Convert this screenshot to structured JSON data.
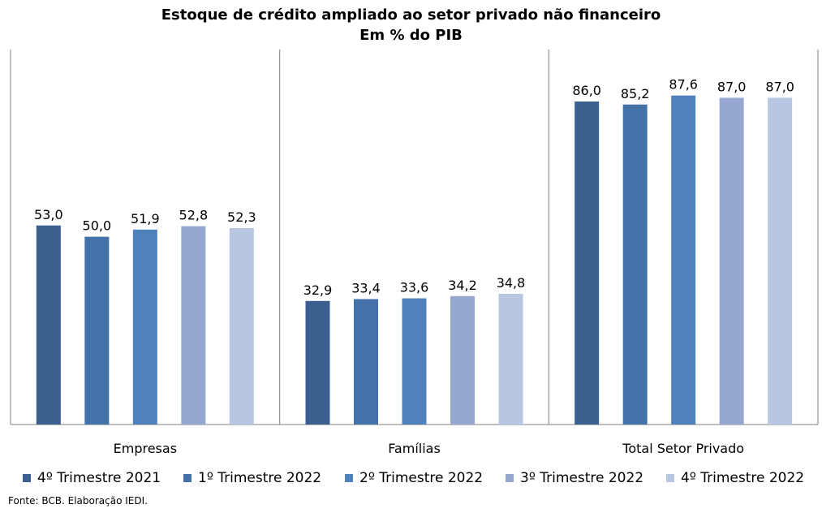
{
  "chart_data": {
    "type": "bar",
    "title": "Estoque de crédito ampliado ao setor privado não financeiro",
    "subtitle": "Em % do PIB",
    "categories": [
      "Empresas",
      "Famílias",
      "Total Setor Privado"
    ],
    "series": [
      {
        "name": "4º Trimestre 2021",
        "color": "#3b5f8f",
        "values": [
          53.0,
          32.9,
          86.0
        ],
        "labels": [
          "53,0",
          "32,9",
          "86,0"
        ]
      },
      {
        "name": "1º Trimestre 2022",
        "color": "#4472a8",
        "values": [
          50.0,
          33.4,
          85.2
        ],
        "labels": [
          "50,0",
          "33,4",
          "85,2"
        ]
      },
      {
        "name": "2º Trimestre 2022",
        "color": "#4f81bd",
        "values": [
          51.9,
          33.6,
          87.6
        ],
        "labels": [
          "51,9",
          "33,6",
          "87,6"
        ]
      },
      {
        "name": "3º Trimestre 2022",
        "color": "#95a8d0",
        "values": [
          52.8,
          34.2,
          87.0
        ],
        "labels": [
          "52,8",
          "34,2",
          "87,0"
        ]
      },
      {
        "name": "4º Trimestre 2022",
        "color": "#b9c6e1",
        "values": [
          52.3,
          34.8,
          87.0
        ],
        "labels": [
          "52,3",
          "34,8",
          "87,0"
        ]
      }
    ],
    "ylim": [
      0,
      100
    ],
    "grid": false,
    "legend_position": "bottom"
  },
  "source": "Fonte: BCB. Elaboração IEDI."
}
